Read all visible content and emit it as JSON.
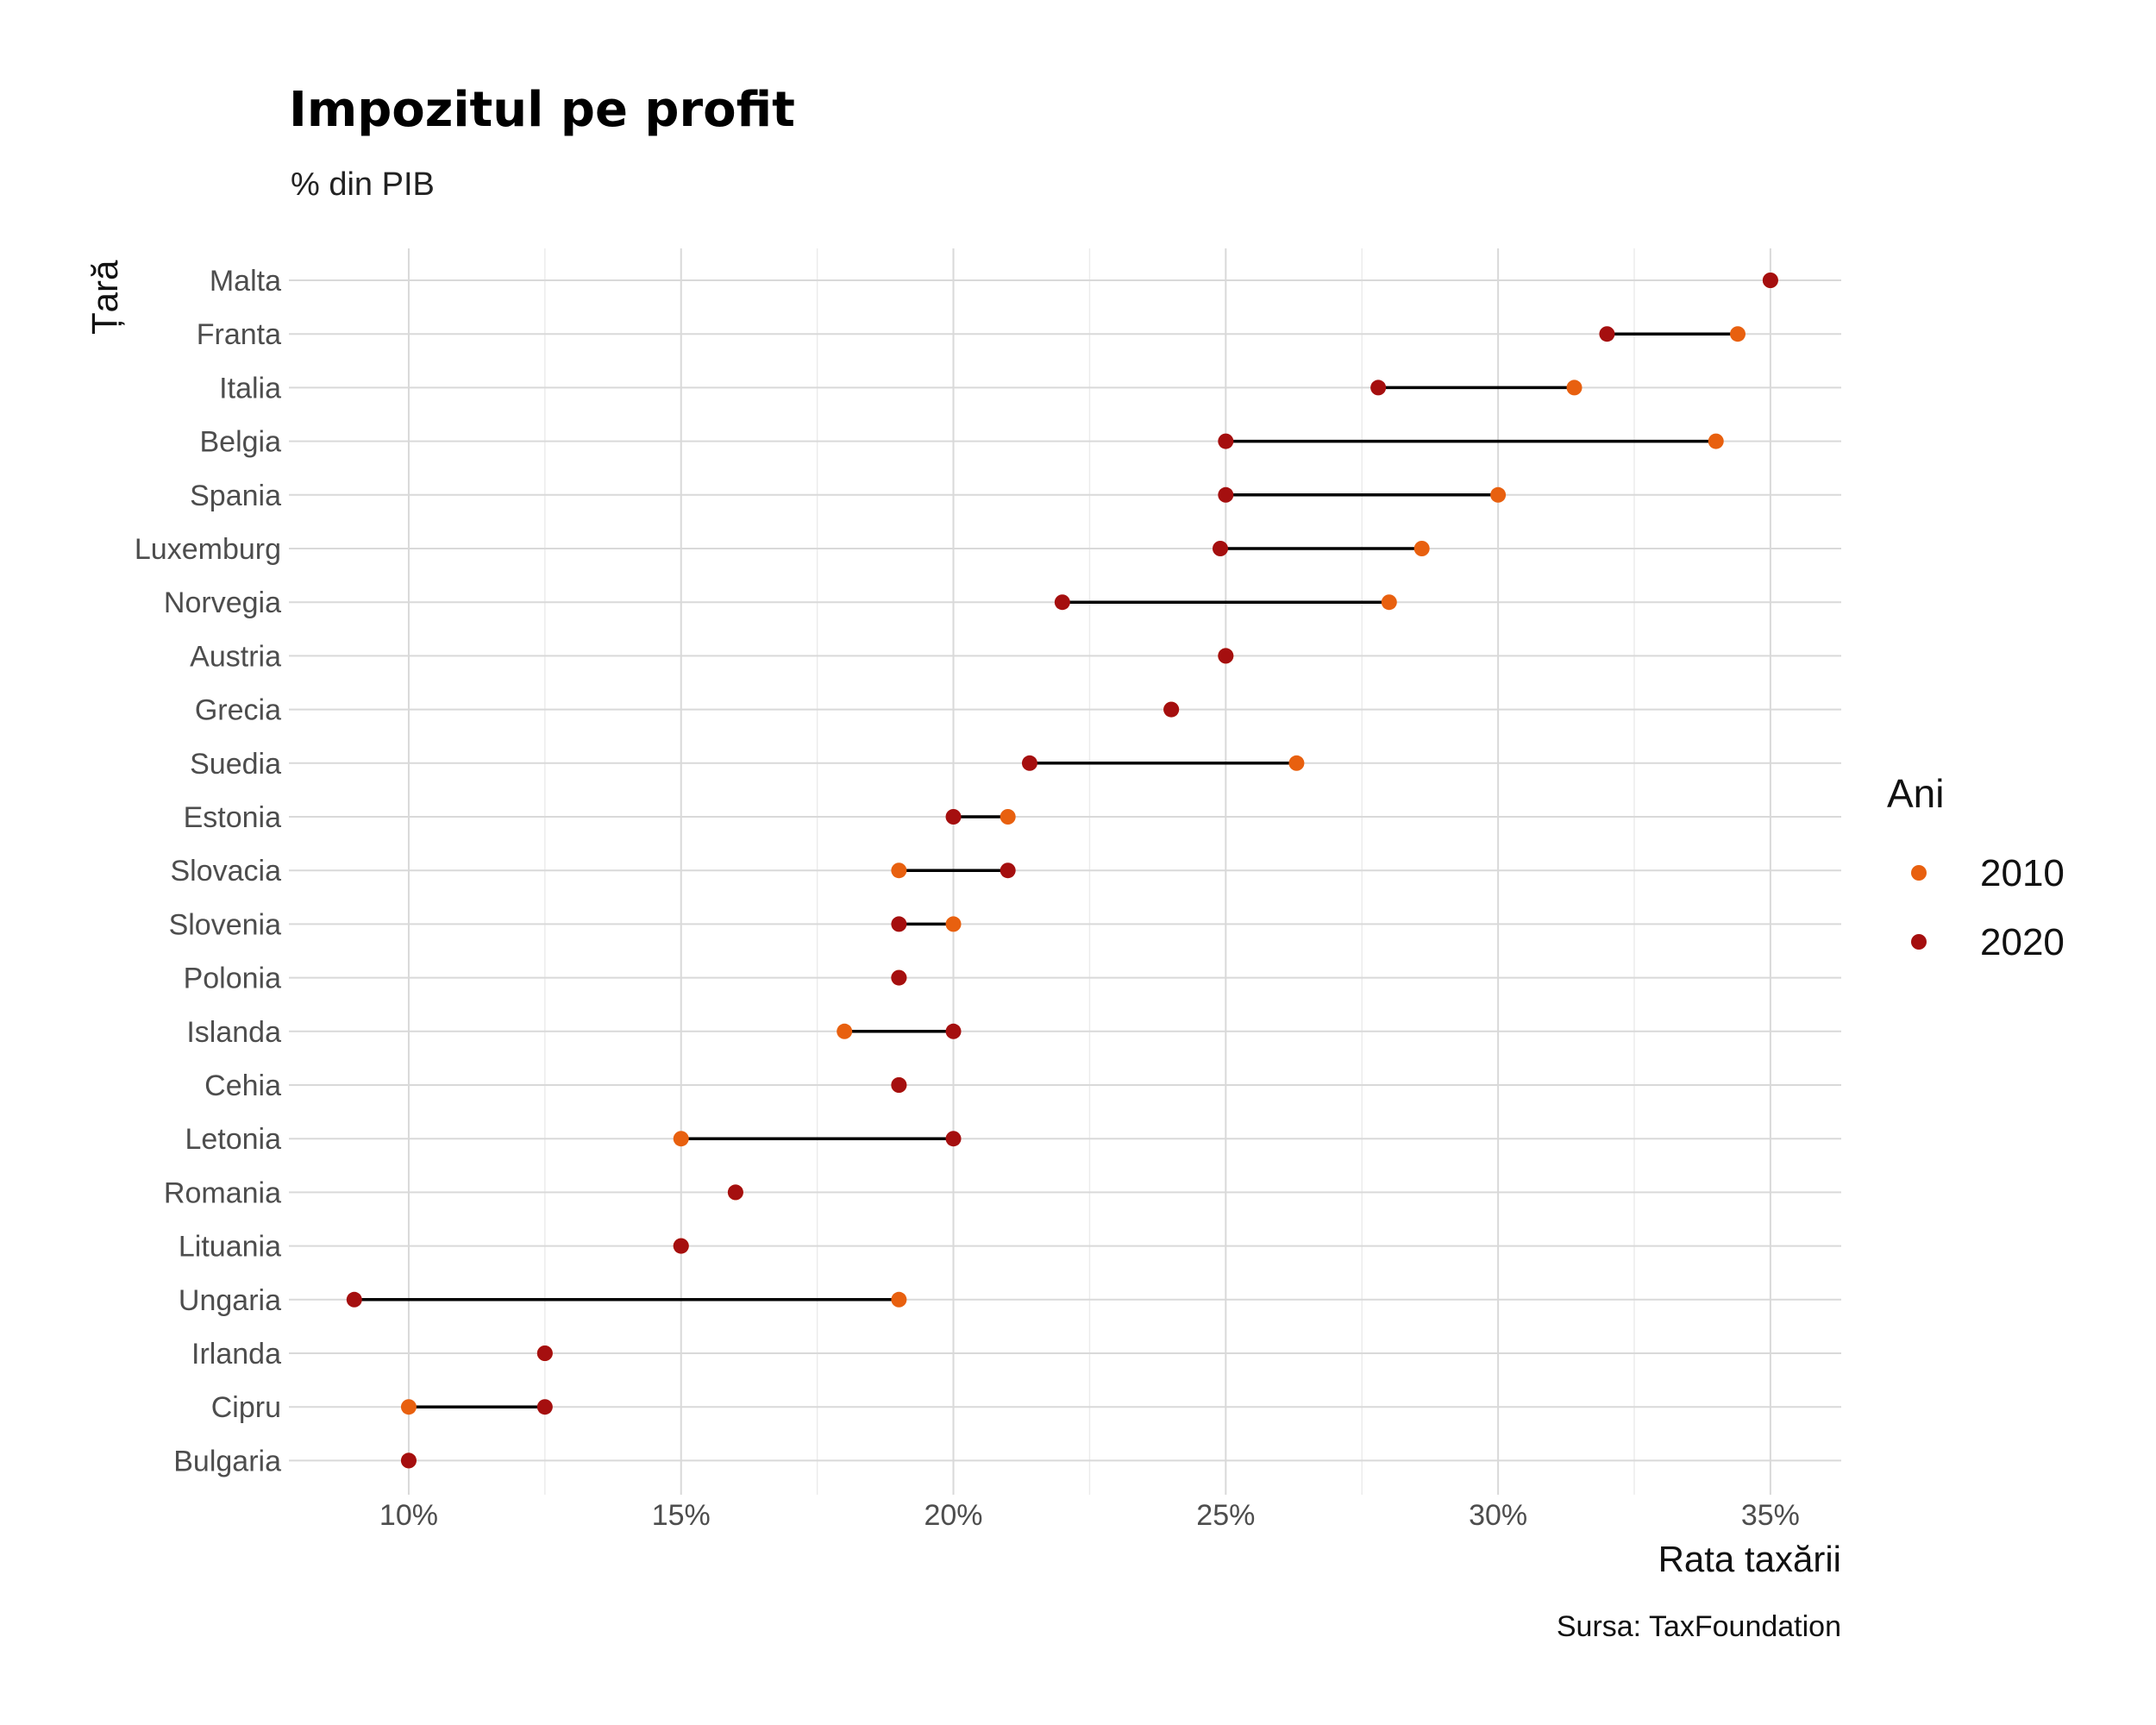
{
  "chart_data": {
    "type": "dumbbell",
    "title": "Impozitul pe profit",
    "subtitle": "% din PIB",
    "xlabel": "Rata taxării",
    "ylabel": "Țară",
    "caption": "Sursa: TaxFoundation",
    "xlim": [
      7.8,
      36.3
    ],
    "x_ticks": [
      10,
      15,
      20,
      25,
      30,
      35
    ],
    "x_tick_labels": [
      "10%",
      "15%",
      "20%",
      "25%",
      "30%",
      "35%"
    ],
    "grid": true,
    "legend": {
      "title": "Ani",
      "position": "right",
      "entries": [
        {
          "label": "2010",
          "color": "#e8600f"
        },
        {
          "label": "2020",
          "color": "#a50f0f"
        }
      ]
    },
    "categories": [
      "Malta",
      "Franta",
      "Italia",
      "Belgia",
      "Spania",
      "Luxemburg",
      "Norvegia",
      "Austria",
      "Grecia",
      "Suedia",
      "Estonia",
      "Slovacia",
      "Slovenia",
      "Polonia",
      "Islanda",
      "Cehia",
      "Letonia",
      "Romania",
      "Lituania",
      "Ungaria",
      "Irlanda",
      "Cipru",
      "Bulgaria"
    ],
    "series": [
      {
        "name": "2010",
        "color": "#e8600f",
        "values": [
          35,
          34.4,
          31.4,
          34,
          30,
          28.6,
          28,
          25,
          24,
          26.3,
          21,
          19,
          20,
          19,
          18,
          19,
          15,
          16,
          15,
          19,
          12.5,
          10,
          10
        ]
      },
      {
        "name": "2020",
        "color": "#a50f0f",
        "values": [
          35,
          32,
          27.8,
          25,
          25,
          24.9,
          22,
          25,
          24,
          21.4,
          20,
          21,
          19,
          19,
          20,
          19,
          20,
          16,
          15,
          9,
          12.5,
          12.5,
          10
        ]
      }
    ]
  }
}
